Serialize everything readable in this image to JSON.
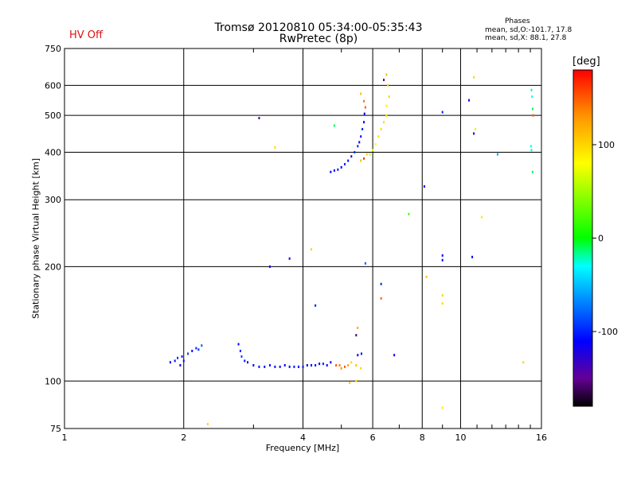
{
  "chart_data": {
    "type": "scatter",
    "title": "Tromsø 20120810 05:34:00-05:35:43",
    "subtitle": "RwPretec (8p)",
    "status_label": "HV Off",
    "xlabel": "Frequency [MHz]",
    "ylabel": "Stationary phase Virtual Height [km]",
    "x_scale": "log",
    "y_scale": "log",
    "xlim": [
      1,
      16
    ],
    "ylim": [
      75,
      750
    ],
    "x_ticks": [
      1,
      2,
      4,
      6,
      8,
      10,
      16
    ],
    "y_ticks": [
      75,
      100,
      200,
      300,
      400,
      500,
      600,
      750
    ],
    "x_gridlines": [
      2,
      4,
      6,
      8,
      10
    ],
    "y_gridlines": [
      100,
      200,
      300,
      400,
      500,
      600
    ],
    "phases": {
      "title": "Phases",
      "o_line": "mean, sd,O:-101.7, 17.8",
      "x_line": "mean, sd,X:  88.1, 27.8"
    },
    "colorbar": {
      "unit": "[deg]",
      "range": [
        -180,
        180
      ],
      "ticks": [
        100,
        0,
        -100
      ]
    },
    "points": [
      [
        1.85,
        112,
        -110
      ],
      [
        1.9,
        113,
        -105
      ],
      [
        1.93,
        115,
        -95
      ],
      [
        1.96,
        110,
        -115
      ],
      [
        1.98,
        116,
        -100
      ],
      [
        2.0,
        113,
        -108
      ],
      [
        2.05,
        118,
        -90
      ],
      [
        2.1,
        120,
        -112
      ],
      [
        2.15,
        122,
        -100
      ],
      [
        2.18,
        121,
        -95
      ],
      [
        2.22,
        124,
        -80
      ],
      [
        2.3,
        77,
        100
      ],
      [
        2.75,
        125,
        -110
      ],
      [
        2.78,
        120,
        -100
      ],
      [
        2.8,
        116,
        -90
      ],
      [
        2.85,
        113,
        -105
      ],
      [
        2.9,
        112,
        -115
      ],
      [
        3.0,
        110,
        -110
      ],
      [
        3.1,
        109,
        -108
      ],
      [
        3.2,
        109,
        -112
      ],
      [
        3.3,
        110,
        -105
      ],
      [
        3.4,
        109,
        -110
      ],
      [
        3.5,
        109,
        -108
      ],
      [
        3.6,
        110,
        -112
      ],
      [
        3.7,
        109,
        -110
      ],
      [
        3.8,
        109,
        -105
      ],
      [
        3.9,
        109,
        -110
      ],
      [
        4.0,
        109,
        -108
      ],
      [
        4.1,
        110,
        -112
      ],
      [
        4.2,
        110,
        -110
      ],
      [
        4.3,
        110,
        -105
      ],
      [
        4.4,
        111,
        -110
      ],
      [
        4.5,
        111,
        -100
      ],
      [
        4.6,
        110,
        -110
      ],
      [
        4.7,
        112,
        -108
      ],
      [
        4.85,
        110,
        150
      ],
      [
        4.95,
        110,
        140
      ],
      [
        5.0,
        108,
        130
      ],
      [
        5.1,
        109,
        150
      ],
      [
        5.2,
        110,
        120
      ],
      [
        5.3,
        112,
        100
      ],
      [
        5.45,
        110,
        110
      ],
      [
        5.6,
        108,
        100
      ],
      [
        5.45,
        132,
        -160
      ],
      [
        5.5,
        138,
        120
      ],
      [
        5.25,
        99,
        110
      ],
      [
        5.45,
        100,
        90
      ],
      [
        5.5,
        117,
        -110
      ],
      [
        5.62,
        118,
        -105
      ],
      [
        4.7,
        355,
        -110
      ],
      [
        4.8,
        358,
        -105
      ],
      [
        4.9,
        360,
        -100
      ],
      [
        5.0,
        365,
        -110
      ],
      [
        5.1,
        372,
        -100
      ],
      [
        5.2,
        380,
        -105
      ],
      [
        5.3,
        390,
        -110
      ],
      [
        5.4,
        400,
        -95
      ],
      [
        5.5,
        415,
        -100
      ],
      [
        5.55,
        425,
        -110
      ],
      [
        5.6,
        440,
        -105
      ],
      [
        5.65,
        460,
        -100
      ],
      [
        5.7,
        480,
        -108
      ],
      [
        5.72,
        505,
        -110
      ],
      [
        5.75,
        525,
        150
      ],
      [
        5.6,
        380,
        110
      ],
      [
        5.7,
        385,
        160
      ],
      [
        5.8,
        395,
        100
      ],
      [
        5.6,
        570,
        110
      ],
      [
        5.7,
        545,
        140
      ],
      [
        5.9,
        395,
        60
      ],
      [
        6.0,
        405,
        70
      ],
      [
        6.1,
        420,
        80
      ],
      [
        6.2,
        440,
        90
      ],
      [
        6.3,
        460,
        95
      ],
      [
        6.4,
        480,
        95
      ],
      [
        6.5,
        500,
        90
      ],
      [
        6.5,
        530,
        85
      ],
      [
        6.6,
        560,
        100
      ],
      [
        6.55,
        600,
        100
      ],
      [
        6.4,
        620,
        -150
      ],
      [
        6.5,
        640,
        110
      ],
      [
        4.8,
        470,
        -10
      ],
      [
        5.75,
        204,
        -80
      ],
      [
        6.3,
        180,
        -100
      ],
      [
        6.3,
        165,
        150
      ],
      [
        6.8,
        117,
        -115
      ],
      [
        7.4,
        275,
        20
      ],
      [
        8.1,
        325,
        -110
      ],
      [
        8.2,
        188,
        110
      ],
      [
        9.0,
        214,
        -110
      ],
      [
        9.0,
        208,
        -110
      ],
      [
        9.0,
        168,
        100
      ],
      [
        9.0,
        160,
        100
      ],
      [
        9.0,
        85,
        90
      ],
      [
        9.0,
        510,
        -100
      ],
      [
        10.5,
        548,
        -120
      ],
      [
        10.7,
        212,
        -110
      ],
      [
        10.8,
        630,
        100
      ],
      [
        10.8,
        448,
        -120
      ],
      [
        10.9,
        460,
        90
      ],
      [
        11.3,
        270,
        90
      ],
      [
        12.4,
        395,
        -60
      ],
      [
        14.4,
        112,
        100
      ],
      [
        15.1,
        583,
        -20
      ],
      [
        15.15,
        560,
        -30
      ],
      [
        15.2,
        520,
        -10
      ],
      [
        15.05,
        415,
        -30
      ],
      [
        15.1,
        405,
        -20
      ],
      [
        15.2,
        355,
        -10
      ],
      [
        15.25,
        500,
        150
      ],
      [
        3.1,
        492,
        -140
      ],
      [
        3.3,
        200,
        -110
      ],
      [
        3.7,
        210,
        -110
      ],
      [
        3.4,
        412,
        100
      ],
      [
        4.2,
        222,
        100
      ],
      [
        4.3,
        158,
        -100
      ]
    ]
  }
}
